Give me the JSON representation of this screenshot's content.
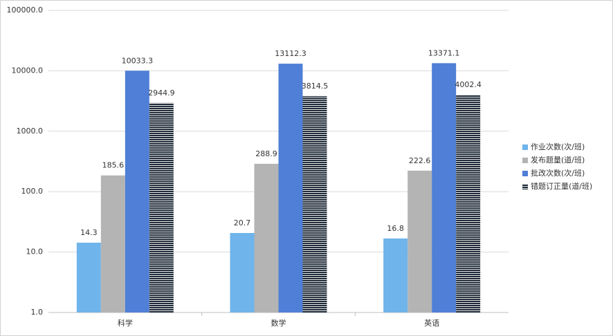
{
  "chart_data": {
    "type": "bar",
    "categories": [
      "科学",
      "数学",
      "英语"
    ],
    "series": [
      {
        "name": "作业次数(次/班)",
        "color": "#6fb4ea",
        "values": [
          14.3,
          20.7,
          16.8
        ]
      },
      {
        "name": "发布题量(道/班)",
        "color": "#b4b4b4",
        "values": [
          185.6,
          288.9,
          222.6
        ]
      },
      {
        "name": "批改次数(次/班)",
        "color": "#4f7fd6",
        "values": [
          10033.3,
          13112.3,
          13371.1
        ]
      },
      {
        "name": "错题订正量(道/班)",
        "color": "#1e2a38",
        "values": [
          2944.9,
          3814.5,
          4002.4
        ]
      }
    ],
    "ylim": [
      1,
      100000
    ],
    "yticks": [
      {
        "value": 1,
        "label": "1.0"
      },
      {
        "value": 10,
        "label": "10.0"
      },
      {
        "value": 100,
        "label": "100.0"
      },
      {
        "value": 1000,
        "label": "1000.0"
      },
      {
        "value": 10000,
        "label": "10000.0"
      },
      {
        "value": 100000,
        "label": "100000.0"
      }
    ],
    "log_scale": true,
    "grid": true,
    "legend_position": "right"
  }
}
